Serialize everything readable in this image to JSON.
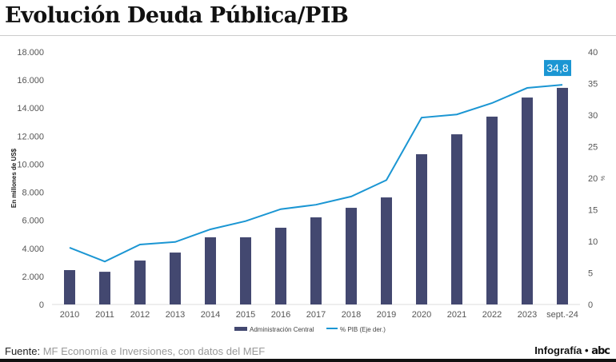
{
  "title": "Evolución Deuda Pública/PIB",
  "footer": {
    "source_label": "Fuente:",
    "source_text": "MF Economía e Inversiones, con datos del MEF",
    "credit": "Infografía •",
    "logo": "abc"
  },
  "chart_data": {
    "type": "bar+line",
    "categories": [
      "2010",
      "2011",
      "2012",
      "2013",
      "2014",
      "2015",
      "2016",
      "2017",
      "2018",
      "2019",
      "2020",
      "2021",
      "2022",
      "2023",
      "sept.-24"
    ],
    "series": [
      {
        "name": "Administración Central",
        "type": "bar",
        "axis": "left",
        "color": "#434870",
        "values": [
          2450,
          2330,
          3130,
          3700,
          4790,
          4790,
          5470,
          6210,
          6890,
          7630,
          10710,
          12130,
          13390,
          14750,
          15440
        ]
      },
      {
        "name": "% PIB (Eje der.)",
        "type": "line",
        "axis": "right",
        "color": "#1b96d3",
        "values": [
          9.0,
          6.8,
          9.5,
          9.9,
          11.9,
          13.2,
          15.1,
          15.8,
          17.1,
          19.7,
          29.6,
          30.1,
          31.9,
          34.3,
          34.8
        ]
      }
    ],
    "ylabel": "En millones de US$",
    "y2label": "%",
    "ylim": [
      0,
      18000
    ],
    "y2lim": [
      0,
      40
    ],
    "yticks": [
      "0",
      "2.000",
      "4.000",
      "6.000",
      "8.000",
      "10.000",
      "12.000",
      "14.000",
      "16.000",
      "18.000"
    ],
    "y2ticks": [
      "0",
      "5",
      "10",
      "15",
      "20",
      "25",
      "30",
      "35",
      "40"
    ],
    "annotation": {
      "label": "34,8",
      "color": "#1b96d3"
    },
    "legend": "bottom",
    "grid": false
  }
}
